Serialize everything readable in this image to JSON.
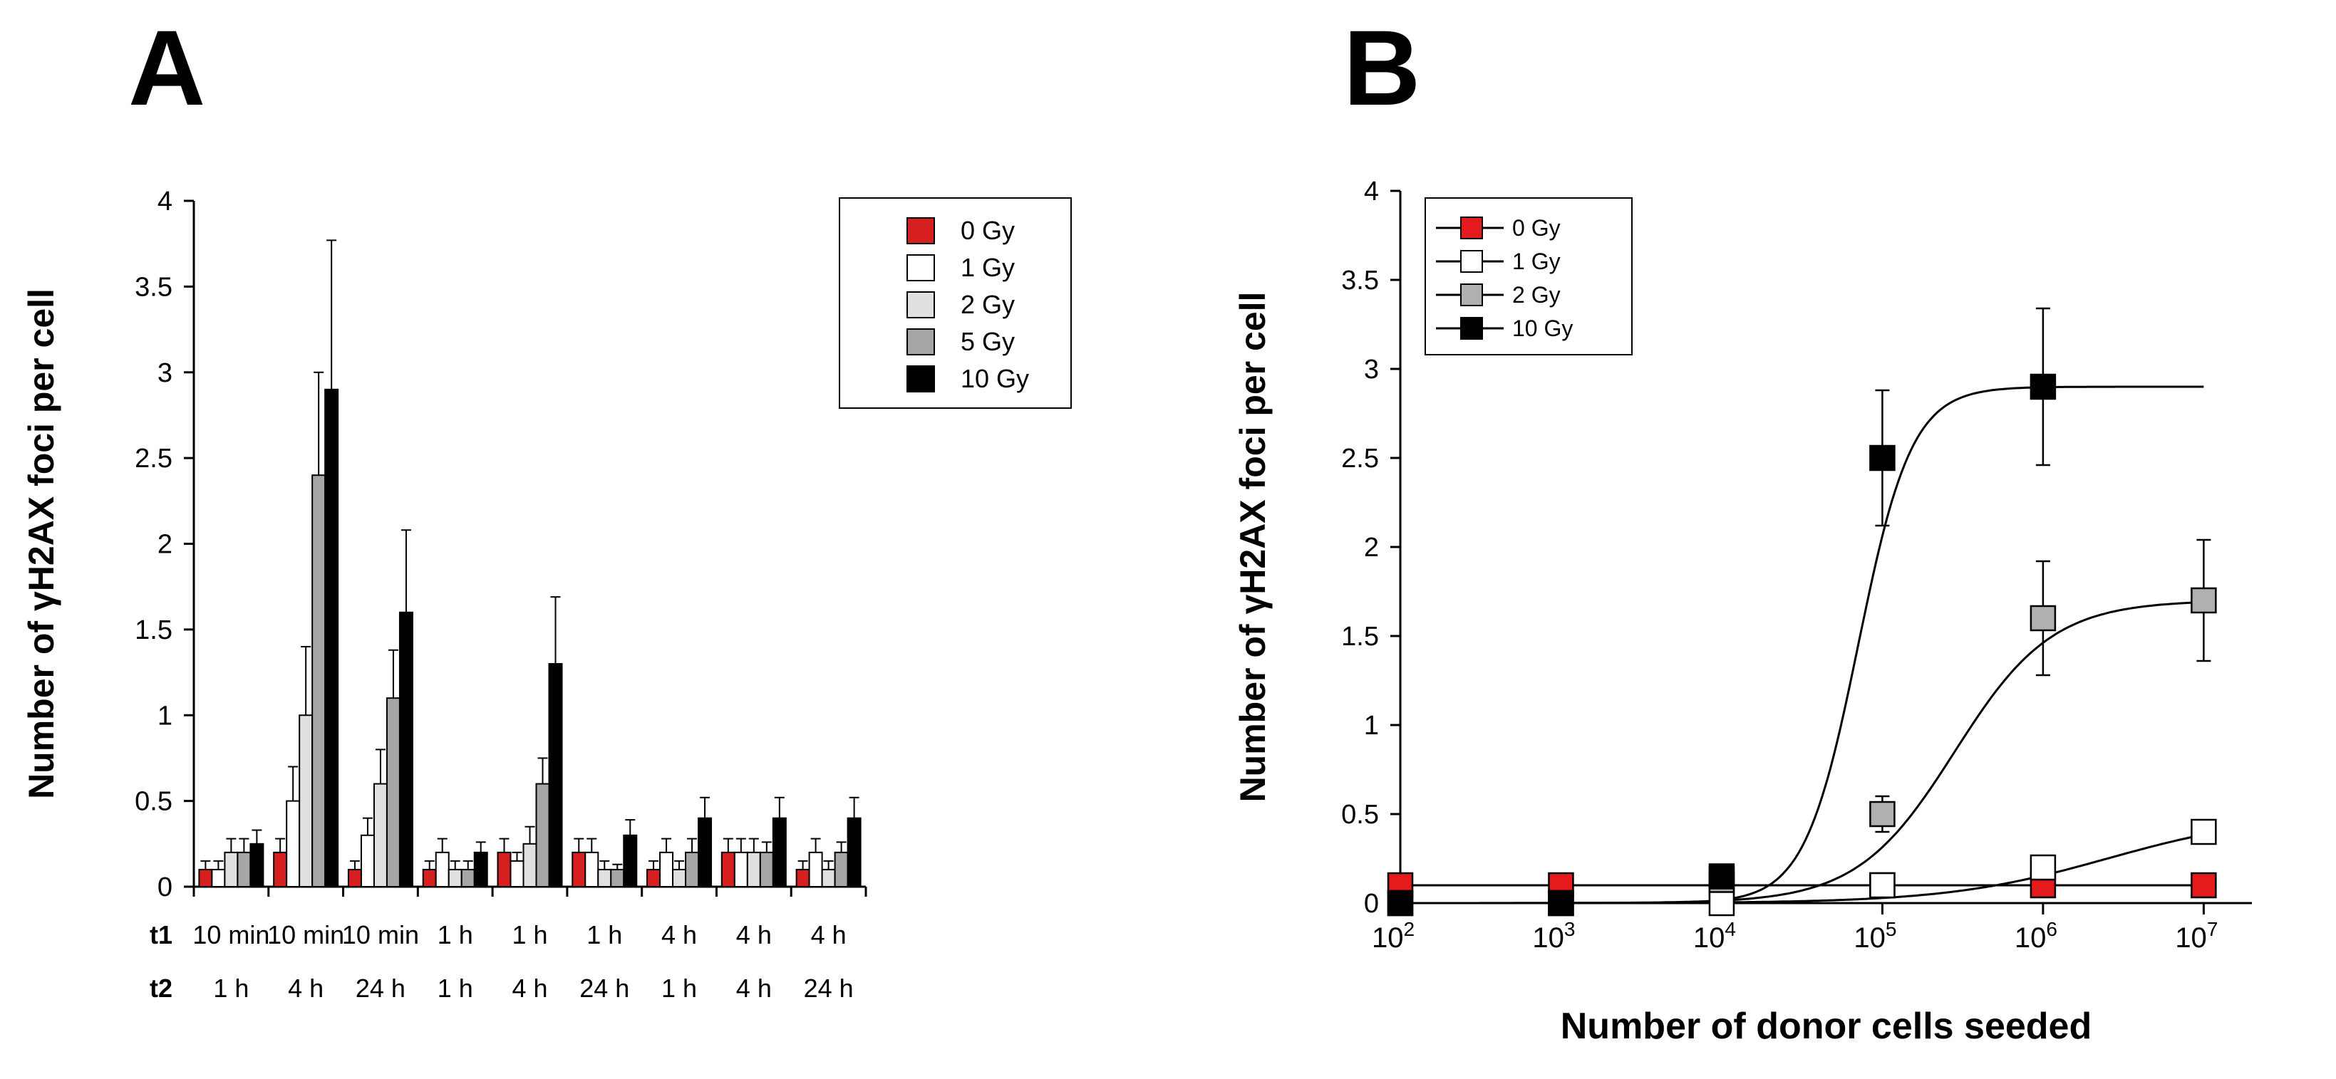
{
  "panels": {
    "a_label": "A",
    "b_label": "B"
  },
  "chart_data": [
    {
      "id": "A",
      "type": "bar",
      "ylabel": "Number of γH2AX foci per cell",
      "ylim": [
        0,
        4
      ],
      "yticks": [
        "0",
        "0.5",
        "1",
        "1.5",
        "2",
        "2.5",
        "3",
        "3.5",
        "4"
      ],
      "row_labels": [
        "t1",
        "t2"
      ],
      "categories": [
        {
          "t1": "10 min",
          "t2": "1 h"
        },
        {
          "t1": "10 min",
          "t2": "4 h"
        },
        {
          "t1": "10 min",
          "t2": "24 h"
        },
        {
          "t1": "1 h",
          "t2": "1 h"
        },
        {
          "t1": "1 h",
          "t2": "4 h"
        },
        {
          "t1": "1 h",
          "t2": "24 h"
        },
        {
          "t1": "4 h",
          "t2": "1 h"
        },
        {
          "t1": "4 h",
          "t2": "4 h"
        },
        {
          "t1": "4 h",
          "t2": "24 h"
        }
      ],
      "series": [
        {
          "name": "0 Gy",
          "color": "#d62020",
          "values": [
            0.1,
            0.2,
            0.1,
            0.1,
            0.2,
            0.2,
            0.1,
            0.2,
            0.1
          ],
          "errors": [
            0.05,
            0.08,
            0.05,
            0.05,
            0.08,
            0.08,
            0.05,
            0.08,
            0.05
          ]
        },
        {
          "name": "1 Gy",
          "color": "#ffffff",
          "values": [
            0.1,
            0.5,
            0.3,
            0.2,
            0.15,
            0.2,
            0.2,
            0.2,
            0.2
          ],
          "errors": [
            0.05,
            0.2,
            0.1,
            0.08,
            0.05,
            0.08,
            0.08,
            0.08,
            0.08
          ]
        },
        {
          "name": "2 Gy",
          "color": "#e0e0e0",
          "values": [
            0.2,
            1.0,
            0.6,
            0.1,
            0.25,
            0.1,
            0.1,
            0.2,
            0.1
          ],
          "errors": [
            0.08,
            0.4,
            0.2,
            0.05,
            0.1,
            0.05,
            0.05,
            0.08,
            0.05
          ]
        },
        {
          "name": "5 Gy",
          "color": "#a6a6a6",
          "values": [
            0.2,
            2.4,
            1.1,
            0.1,
            0.6,
            0.1,
            0.2,
            0.2,
            0.2
          ],
          "errors": [
            0.08,
            0.6,
            0.28,
            0.05,
            0.15,
            0.03,
            0.08,
            0.06,
            0.06
          ]
        },
        {
          "name": "10 Gy",
          "color": "#000000",
          "values": [
            0.25,
            2.9,
            1.6,
            0.2,
            1.3,
            0.3,
            0.4,
            0.4,
            0.4
          ],
          "errors": [
            0.08,
            0.87,
            0.48,
            0.06,
            0.39,
            0.09,
            0.12,
            0.12,
            0.12
          ]
        }
      ],
      "legend": "top-right"
    },
    {
      "id": "B",
      "type": "line",
      "xlabel": "Number of donor cells seeded",
      "ylabel": "Number of γH2AX foci per cell",
      "xscale": "log",
      "x": [
        2,
        3,
        4,
        5,
        6,
        7
      ],
      "xtick_base": "10",
      "xtick_exps": [
        "2",
        "3",
        "4",
        "5",
        "6",
        "7"
      ],
      "xlim_exp": [
        2,
        7.3
      ],
      "ylim": [
        0,
        4
      ],
      "yticks": [
        "0",
        "0.5",
        "1",
        "1.5",
        "2",
        "2.5",
        "3",
        "3.5",
        "4"
      ],
      "series": [
        {
          "name": "0 Gy",
          "color": "#e41a1c",
          "x": [
            2,
            3,
            4,
            5,
            6,
            7
          ],
          "y": [
            0.1,
            0.1,
            0.1,
            0.1,
            0.1,
            0.1
          ],
          "errors": [
            0,
            0,
            0,
            0,
            0,
            0
          ],
          "fit": {
            "bottom": 0.1,
            "top": 0.1,
            "mid": 5,
            "slope": 2
          }
        },
        {
          "name": "1 Gy",
          "color": "#ffffff",
          "x": [
            2,
            3,
            4,
            5,
            6,
            7
          ],
          "y": [
            0,
            0,
            0,
            0.1,
            0.2,
            0.4
          ],
          "errors": [
            0,
            0,
            0,
            0,
            0.03,
            0.05
          ],
          "fit": {
            "bottom": 0,
            "top": 0.5,
            "mid": 6.4,
            "slope": 2.0
          }
        },
        {
          "name": "2 Gy",
          "color": "#b0b0b0",
          "x": [
            4,
            5,
            6,
            7
          ],
          "y": [
            0.13,
            0.5,
            1.6,
            1.7
          ],
          "errors": [
            0.03,
            0.1,
            0.32,
            0.34
          ],
          "fit": {
            "bottom": 0,
            "top": 1.7,
            "mid": 5.45,
            "slope": 3.3
          }
        },
        {
          "name": "10 Gy",
          "color": "#000000",
          "x": [
            2,
            3,
            4,
            5,
            6
          ],
          "y": [
            0,
            0,
            0.15,
            2.5,
            2.9
          ],
          "errors": [
            0,
            0,
            0.03,
            0.38,
            0.44
          ],
          "fit": {
            "bottom": 0,
            "top": 2.9,
            "mid": 4.85,
            "slope": 6
          }
        }
      ],
      "legend": "top-left"
    }
  ]
}
